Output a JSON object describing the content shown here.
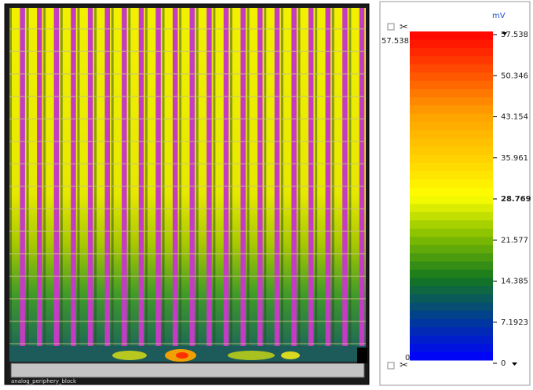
{
  "viewer": {
    "block_label": "analog_periphery_block"
  },
  "legend": {
    "unit": "mV",
    "max_label": "57.538",
    "min_label": "0",
    "ticks": [
      "57.538",
      "50.346",
      "43.154",
      "35.961",
      "28.769",
      "21.577",
      "14.385",
      "7.1923",
      "0"
    ]
  }
}
